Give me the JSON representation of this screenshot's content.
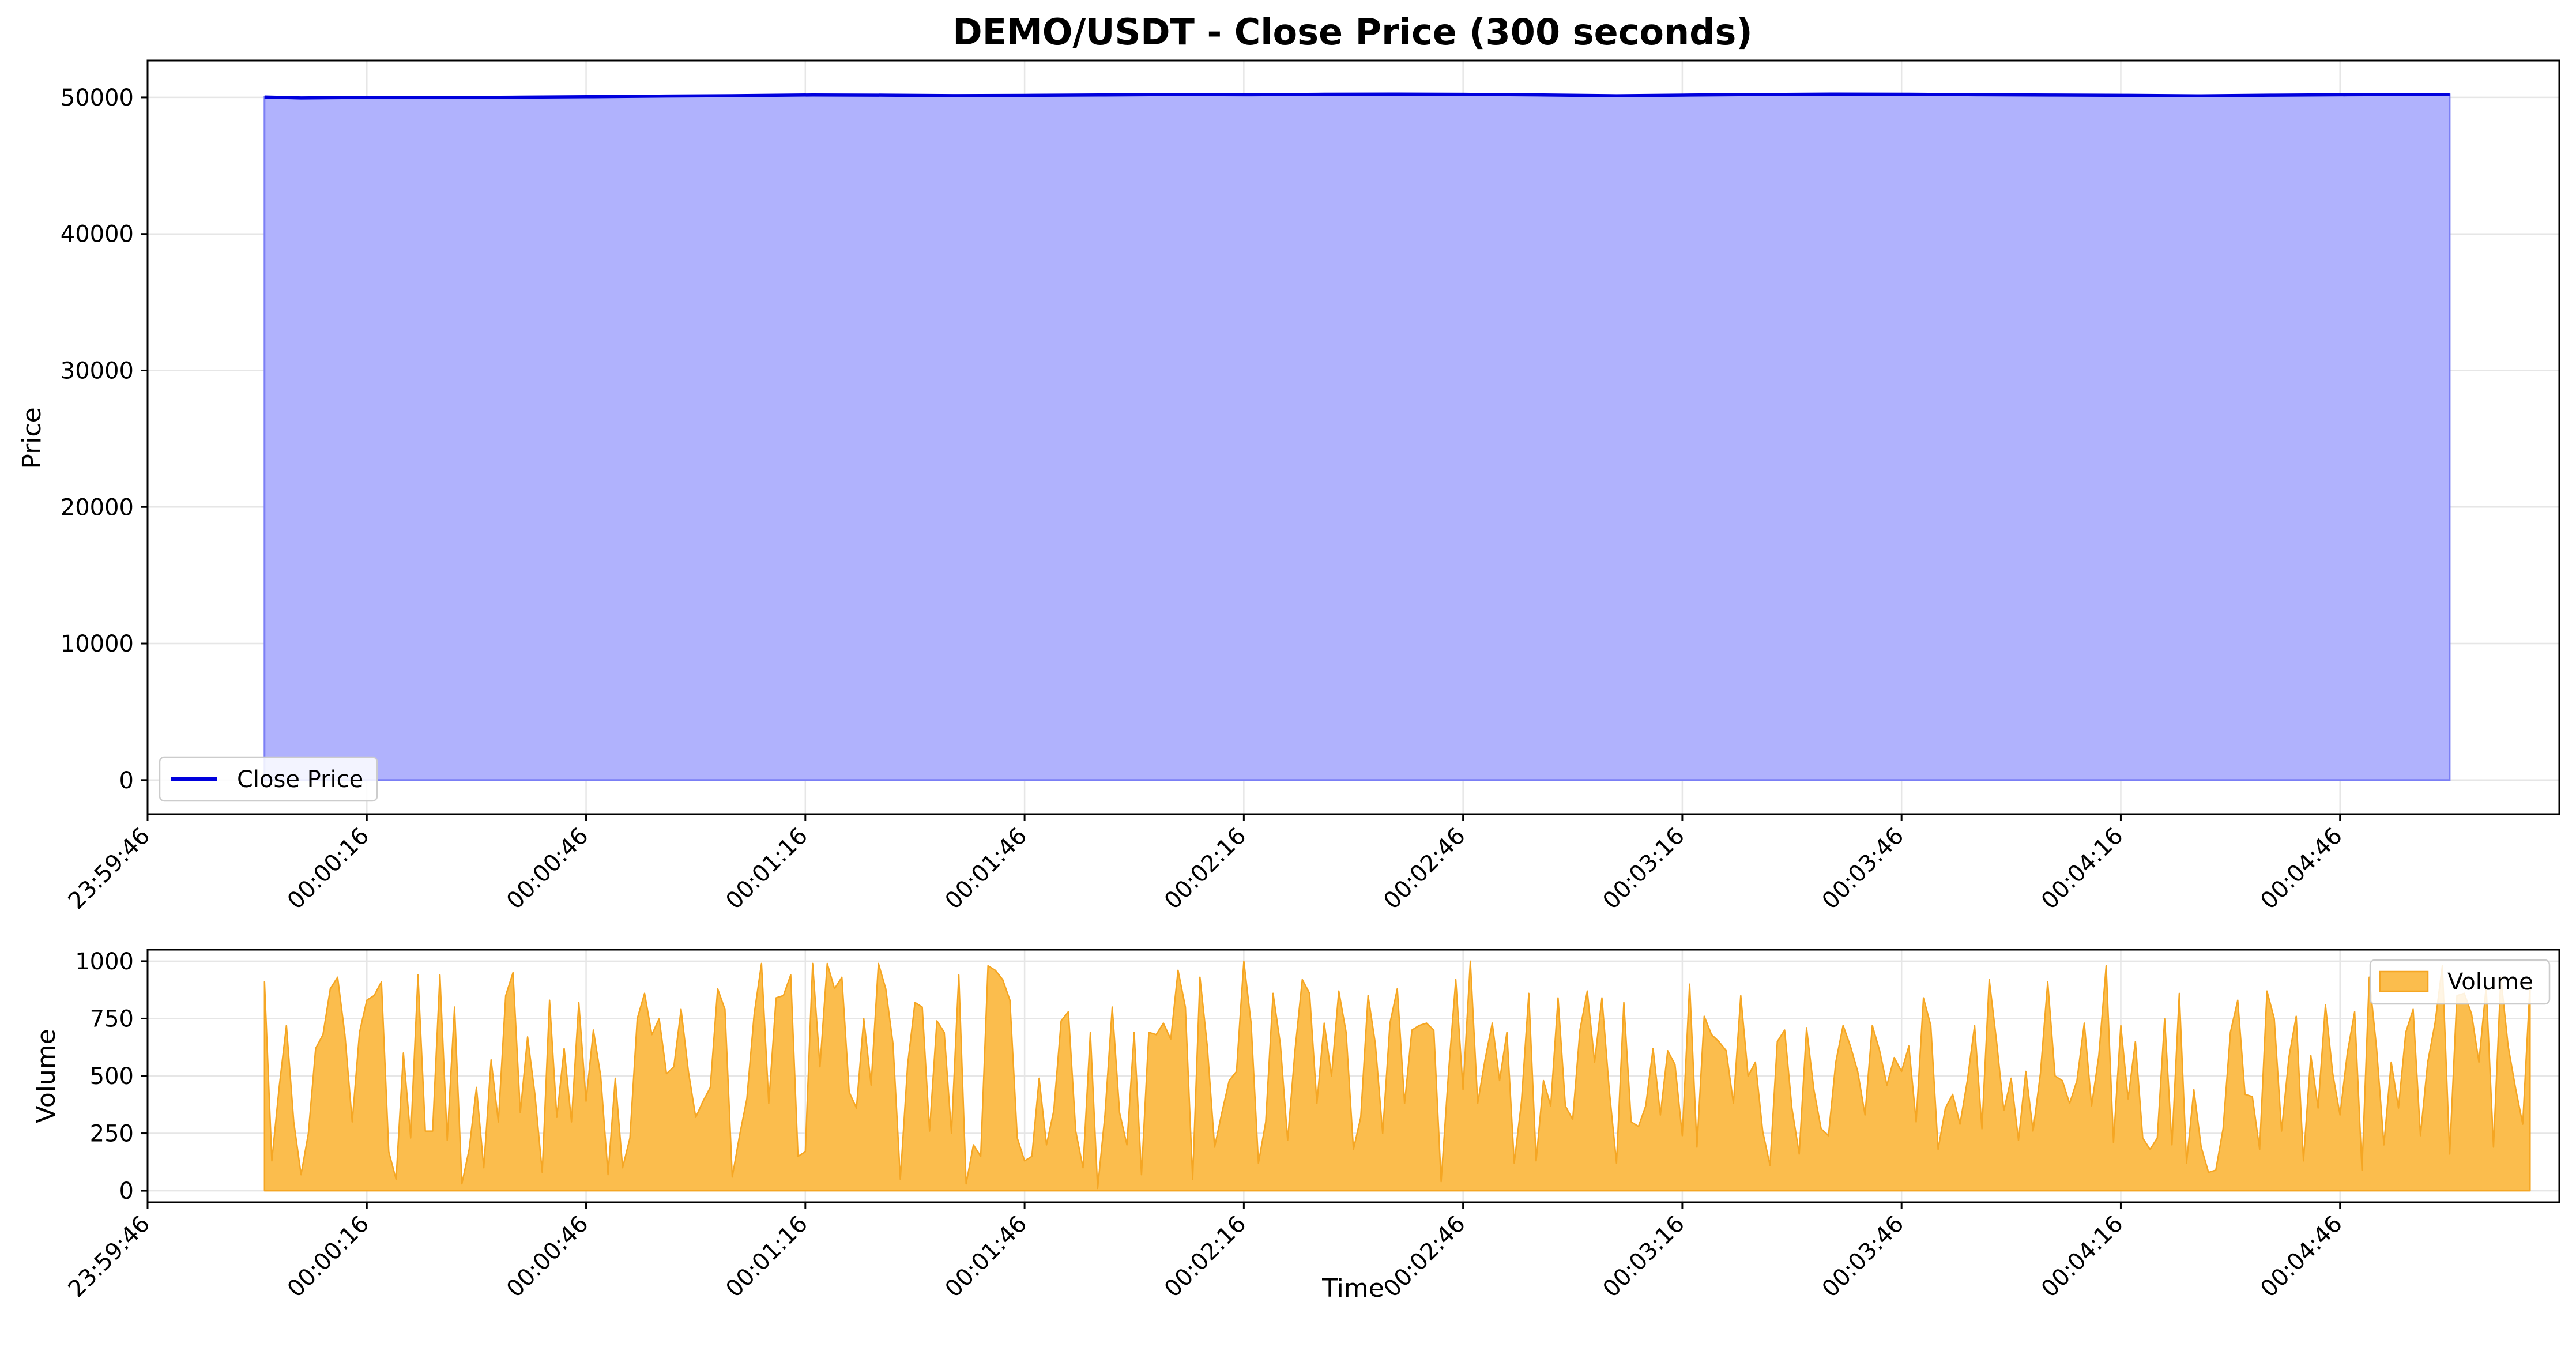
{
  "chart_data": [
    {
      "type": "area",
      "title": "DEMO/USDT - Close Price (300 seconds)",
      "xlabel": "",
      "ylabel": "Price",
      "x_ticks": [
        "23:59:46",
        "00:00:16",
        "00:00:46",
        "00:01:16",
        "00:01:46",
        "00:02:16",
        "00:02:46",
        "00:03:16",
        "00:03:46",
        "00:04:16",
        "00:04:46"
      ],
      "x_range_seconds": [
        -16,
        314
      ],
      "x_start_seconds": 0,
      "x_step_seconds": 1,
      "y_ticks": [
        0,
        10000,
        20000,
        30000,
        40000,
        50000
      ],
      "ylim": [
        -2500,
        52700
      ],
      "grid": true,
      "legend": "lower-left",
      "series": [
        {
          "name": "Close Price",
          "color": "#0000dd",
          "fill": "#b0b2fd",
          "x": [
            0,
            5,
            15,
            25,
            35,
            45,
            55,
            65,
            75,
            85,
            95,
            105,
            115,
            125,
            135,
            145,
            155,
            165,
            175,
            185,
            195,
            205,
            215,
            225,
            235,
            245,
            255,
            265,
            275,
            285,
            299
          ],
          "values": [
            50030,
            49960,
            50010,
            49990,
            50020,
            50050,
            50100,
            50130,
            50180,
            50160,
            50130,
            50150,
            50180,
            50210,
            50190,
            50230,
            50240,
            50220,
            50180,
            50120,
            50170,
            50210,
            50240,
            50230,
            50190,
            50170,
            50150,
            50110,
            50160,
            50190,
            50220
          ]
        }
      ]
    },
    {
      "type": "area",
      "xlabel": "Time",
      "ylabel": "Volume",
      "x_ticks": [
        "23:59:46",
        "00:00:16",
        "00:00:46",
        "00:01:16",
        "00:01:46",
        "00:02:16",
        "00:02:46",
        "00:03:16",
        "00:03:46",
        "00:04:16",
        "00:04:46"
      ],
      "y_ticks": [
        0,
        250,
        500,
        750,
        1000
      ],
      "ylim": [
        -50,
        1050
      ],
      "grid": true,
      "legend": "upper-right",
      "series": [
        {
          "name": "Volume",
          "color": "#f5a623",
          "fill": "#fbbd4d",
          "x_start_seconds": 0,
          "x_step_seconds": 1,
          "values": [
            910,
            130,
            450,
            720,
            300,
            70,
            250,
            620,
            680,
            880,
            930,
            680,
            300,
            690,
            830,
            850,
            910,
            170,
            50,
            600,
            230,
            940,
            260,
            260,
            940,
            220,
            800,
            30,
            180,
            450,
            100,
            570,
            300,
            850,
            950,
            340,
            670,
            420,
            80,
            830,
            320,
            620,
            300,
            820,
            390,
            700,
            500,
            70,
            490,
            100,
            230,
            750,
            860,
            680,
            750,
            510,
            540,
            790,
            520,
            320,
            390,
            450,
            880,
            790,
            60,
            240,
            400,
            770,
            990,
            380,
            840,
            850,
            940,
            150,
            170,
            990,
            540,
            990,
            880,
            930,
            430,
            360,
            750,
            460,
            990,
            880,
            640,
            50,
            550,
            820,
            800,
            260,
            740,
            690,
            250,
            940,
            30,
            200,
            150,
            980,
            960,
            920,
            830,
            230,
            130,
            150,
            490,
            200,
            350,
            740,
            780,
            260,
            100,
            690,
            10,
            330,
            800,
            340,
            200,
            690,
            70,
            690,
            680,
            730,
            660,
            960,
            800,
            50,
            930,
            630,
            190,
            340,
            480,
            520,
            1000,
            730,
            120,
            300,
            860,
            640,
            220,
            610,
            920,
            860,
            380,
            730,
            500,
            870,
            690,
            180,
            320,
            850,
            640,
            250,
            730,
            880,
            380,
            700,
            720,
            730,
            700,
            40,
            510,
            920,
            440,
            1000,
            380,
            570,
            730,
            480,
            690,
            120,
            390,
            860,
            130,
            480,
            370,
            840,
            370,
            310,
            700,
            870,
            560,
            840,
            440,
            120,
            820,
            300,
            280,
            370,
            620,
            330,
            610,
            550,
            240,
            900,
            190,
            760,
            680,
            650,
            610,
            380,
            850,
            500,
            560,
            260,
            110,
            650,
            700,
            360,
            160,
            710,
            440,
            270,
            240,
            560,
            720,
            630,
            520,
            330,
            720,
            610,
            460,
            580,
            520,
            630,
            300,
            840,
            720,
            180,
            360,
            420,
            290,
            480,
            720,
            270,
            920,
            650,
            350,
            490,
            220,
            520,
            260,
            510,
            910,
            500,
            480,
            380,
            480,
            730,
            370,
            590,
            980,
            210,
            720,
            400,
            650,
            230,
            180,
            230,
            750,
            200,
            860,
            120,
            440,
            190,
            80,
            90,
            270,
            690,
            830,
            420,
            410,
            180,
            870,
            750,
            260,
            580,
            760,
            130,
            590,
            360,
            810,
            510,
            330,
            600,
            780,
            90,
            930,
            620,
            200,
            560,
            360,
            690,
            790,
            240,
            560,
            730,
            980,
            160,
            850,
            860,
            770,
            560,
            890,
            190,
            930,
            630,
            450,
            290,
            900
          ]
        }
      ]
    }
  ]
}
